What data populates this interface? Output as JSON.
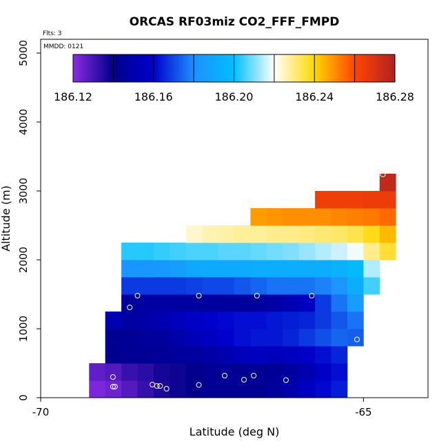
{
  "chart_data": {
    "type": "heatmap",
    "title": "ORCAS RF03miz CO2_FFF_FMPD",
    "subtitle_flights": "Flts: 3",
    "subtitle_date": "MMDD: 0121",
    "xlabel": "Latitude (deg N)",
    "ylabel": "Altitude (m)",
    "xlim": [
      -70,
      -64
    ],
    "ylim": [
      0,
      5200
    ],
    "xticks": [
      -70,
      -65
    ],
    "yticks": [
      0,
      1000,
      2000,
      3000,
      4000,
      5000
    ],
    "grid": false,
    "colorbar": {
      "location": "top",
      "min": 186.12,
      "max": 186.28,
      "tick_values": [
        186.12,
        186.16,
        186.2,
        186.24,
        186.28
      ],
      "tick_labels": [
        "186.12",
        "186.16",
        "186.20",
        "186.24",
        "186.28"
      ],
      "boundaries": [
        186.12,
        186.14,
        186.16,
        186.18,
        186.2,
        186.22,
        186.24,
        186.26,
        186.28
      ],
      "colors": [
        "#8a2be2",
        "#00008b",
        "#0000cd",
        "#1e90ff",
        "#00bfff",
        "#ffffff",
        "#ffd700",
        "#ff4500",
        "#b22222"
      ]
    },
    "bin_size": {
      "lat": 0.25,
      "alt": 250
    },
    "rows": [
      {
        "alt": 0,
        "lat0": -69.25,
        "values": [
          186.122,
          186.124,
          186.128,
          186.132,
          186.136,
          186.138,
          186.14,
          186.142,
          186.143,
          186.143,
          186.142,
          186.145,
          186.15,
          186.156,
          186.161,
          186.164
        ]
      },
      {
        "alt": 250,
        "lat0": -69.25,
        "values": [
          186.126,
          186.128,
          186.132,
          186.134,
          186.137,
          186.138,
          186.14,
          186.142,
          186.144,
          186.142,
          186.143,
          186.144,
          186.146,
          186.151,
          186.158,
          186.162
        ]
      },
      {
        "alt": 500,
        "lat0": -69.0,
        "values": [
          186.141,
          186.142,
          186.143,
          186.144,
          186.145,
          186.146,
          186.148,
          186.151,
          186.155,
          186.156,
          186.155,
          186.156,
          186.158,
          186.162,
          186.165
        ]
      },
      {
        "alt": 750,
        "lat0": -69.0,
        "values": [
          186.142,
          186.143,
          186.145,
          186.146,
          186.149,
          186.154,
          186.157,
          186.16,
          186.162,
          186.163,
          186.163,
          186.165,
          186.168,
          186.171,
          186.174,
          186.173
        ]
      },
      {
        "alt": 1000,
        "lat0": -69.0,
        "values": [
          186.152,
          186.147,
          186.149,
          186.152,
          186.155,
          186.158,
          186.16,
          186.161,
          186.162,
          186.162,
          186.163,
          186.164,
          186.165,
          186.168,
          186.172,
          186.176
        ]
      },
      {
        "alt": 1250,
        "lat0": -68.75,
        "values": [
          186.146,
          186.147,
          186.147,
          186.147,
          186.146,
          186.146,
          186.145,
          186.145,
          186.146,
          186.148,
          186.152,
          186.157,
          186.168,
          186.176,
          186.185
        ]
      },
      {
        "alt": 1500,
        "lat0": -68.75,
        "values": [
          186.168,
          186.168,
          186.168,
          186.168,
          186.169,
          186.17,
          186.17,
          186.172,
          186.174,
          186.176,
          186.176,
          186.176,
          186.178,
          186.182,
          186.192,
          186.205
        ]
      },
      {
        "alt": 1750,
        "lat0": -68.75,
        "values": [
          186.182,
          186.183,
          186.184,
          186.186,
          186.19,
          186.191,
          186.191,
          186.191,
          186.192,
          186.192,
          186.192,
          186.192,
          186.192,
          186.194,
          186.198,
          186.214
        ]
      },
      {
        "alt": 2000,
        "lat0": -68.75,
        "values": [
          186.203,
          186.203,
          186.204,
          186.205,
          186.206,
          186.206,
          186.207,
          186.207,
          186.208,
          186.209,
          186.21,
          186.212,
          186.214,
          186.216,
          186.219,
          186.229,
          186.236
        ]
      },
      {
        "alt": 2250,
        "lat0": -67.75,
        "values": [
          186.224,
          186.226,
          186.227,
          186.228,
          186.228,
          186.229,
          186.229,
          186.23,
          186.231,
          186.232,
          186.234,
          186.238,
          186.244
        ]
      },
      {
        "alt": 2500,
        "lat0": -66.75,
        "values": [
          186.248,
          186.249,
          186.25,
          186.25,
          186.25,
          186.251,
          186.252,
          186.253,
          186.255
        ]
      },
      {
        "alt": 2750,
        "lat0": -65.75,
        "values": [
          186.264,
          186.264,
          186.264,
          186.265,
          186.265
        ]
      },
      {
        "alt": 3000,
        "lat0": -64.75,
        "values": [
          186.276
        ]
      }
    ],
    "flight_points": [
      [
        -68.85,
        160
      ],
      [
        -68.88,
        160
      ],
      [
        -68.88,
        300
      ],
      [
        -68.27,
        190
      ],
      [
        -68.2,
        170
      ],
      [
        -68.15,
        170
      ],
      [
        -68.05,
        130
      ],
      [
        -67.55,
        185
      ],
      [
        -67.15,
        320
      ],
      [
        -66.85,
        260
      ],
      [
        -66.7,
        320
      ],
      [
        -66.2,
        255
      ],
      [
        -65.1,
        845
      ],
      [
        -68.62,
        1310
      ],
      [
        -68.5,
        1480
      ],
      [
        -67.55,
        1480
      ],
      [
        -66.65,
        1480
      ],
      [
        -65.8,
        1480
      ],
      [
        -64.7,
        3240
      ]
    ]
  }
}
